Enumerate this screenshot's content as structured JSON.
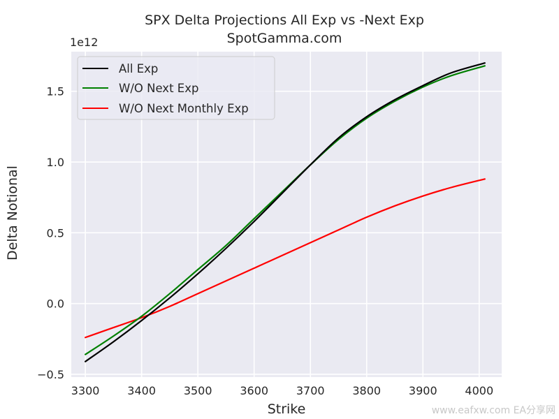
{
  "chart_data": {
    "type": "line",
    "title": "SPX Delta Projections All Exp vs -Next Exp",
    "subtitle": "SpotGamma.com",
    "xlabel": "Strike",
    "ylabel": "Delta Notional",
    "y_scale_label": "1e12",
    "xlim": [
      3275,
      4040
    ],
    "ylim": [
      -0.52,
      1.78
    ],
    "x_ticks": [
      3300,
      3400,
      3500,
      3600,
      3700,
      3800,
      3900,
      4000
    ],
    "y_ticks": [
      -0.5,
      0.0,
      0.5,
      1.0,
      1.5
    ],
    "x_tick_labels": [
      "3300",
      "3400",
      "3500",
      "3600",
      "3700",
      "3800",
      "3900",
      "4000"
    ],
    "y_tick_labels": [
      "−0.5",
      "0.0",
      "0.5",
      "1.0",
      "1.5"
    ],
    "grid": true,
    "legend_position": "top-left",
    "x": [
      3300,
      3350,
      3400,
      3450,
      3500,
      3550,
      3600,
      3650,
      3700,
      3750,
      3800,
      3850,
      3900,
      3950,
      4010
    ],
    "series": [
      {
        "name": "All Exp",
        "color": "#000000",
        "values": [
          -0.41,
          -0.27,
          -0.12,
          0.04,
          0.21,
          0.39,
          0.58,
          0.78,
          0.98,
          1.17,
          1.32,
          1.44,
          1.54,
          1.63,
          1.7
        ]
      },
      {
        "name": "W/O Next Exp",
        "color": "#008000",
        "values": [
          -0.36,
          -0.23,
          -0.09,
          0.07,
          0.24,
          0.41,
          0.6,
          0.79,
          0.98,
          1.16,
          1.31,
          1.43,
          1.53,
          1.61,
          1.68
        ]
      },
      {
        "name": "W/O Next Monthly Exp",
        "color": "#ff0000",
        "values": [
          -0.24,
          -0.17,
          -0.1,
          -0.02,
          0.07,
          0.16,
          0.25,
          0.34,
          0.43,
          0.52,
          0.61,
          0.69,
          0.76,
          0.82,
          0.88
        ]
      }
    ]
  },
  "watermark": "www.eafxw.com  EA分享网"
}
